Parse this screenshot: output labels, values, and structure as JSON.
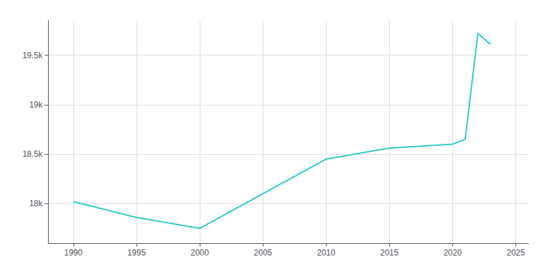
{
  "chart_data": {
    "type": "line",
    "x": [
      1990,
      1995,
      2000,
      2010,
      2015,
      2020,
      2021,
      2022,
      2023
    ],
    "values": [
      18020,
      17860,
      17750,
      18450,
      18560,
      18600,
      18650,
      19720,
      19610
    ],
    "color": "#2ecbcb",
    "xlim": [
      1988,
      2026
    ],
    "ylim": [
      17600,
      19850
    ],
    "xticks": [
      1990,
      1995,
      2000,
      2005,
      2010,
      2015,
      2020,
      2025
    ],
    "yticks": [
      {
        "value": 18000,
        "label": "18k"
      },
      {
        "value": 18500,
        "label": "18.5k"
      },
      {
        "value": 19000,
        "label": "19k"
      },
      {
        "value": 19500,
        "label": "19.5k"
      }
    ],
    "grid": true
  }
}
